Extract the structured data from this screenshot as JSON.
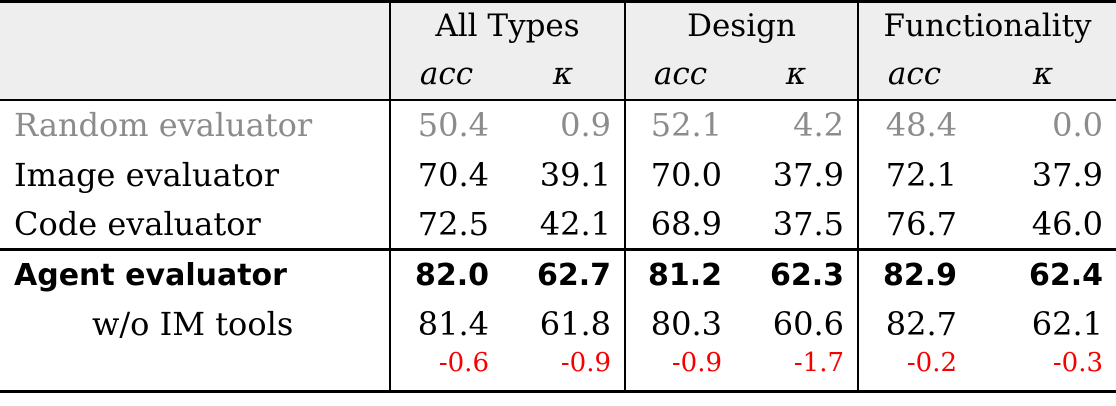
{
  "table": {
    "corner_label": "",
    "groups": [
      {
        "label": "All Types"
      },
      {
        "label": "Design"
      },
      {
        "label": "Functionality"
      }
    ],
    "subheaders": {
      "acc": "acc",
      "kappa": "κ"
    },
    "rows": [
      {
        "label": "Random evaluator",
        "style": "muted",
        "values": [
          "50.4",
          "0.9",
          "52.1",
          "4.2",
          "48.4",
          "0.0"
        ]
      },
      {
        "label": "Image evaluator",
        "style": "normal",
        "values": [
          "70.4",
          "39.1",
          "70.0",
          "37.9",
          "72.1",
          "37.9"
        ]
      },
      {
        "label": "Code evaluator",
        "style": "normal",
        "values": [
          "72.5",
          "42.1",
          "68.9",
          "37.5",
          "76.7",
          "46.0"
        ]
      },
      {
        "label": "Agent evaluator",
        "style": "bold",
        "values": [
          "82.0",
          "62.7",
          "81.2",
          "62.3",
          "82.9",
          "62.4"
        ]
      },
      {
        "label": "w/o IM tools",
        "style": "indented",
        "values": [
          "81.4",
          "61.8",
          "80.3",
          "60.6",
          "82.7",
          "62.1"
        ]
      },
      {
        "label": "",
        "style": "delta-red",
        "values": [
          "-0.6",
          "-0.9",
          "-0.9",
          "-1.7",
          "-0.2",
          "-0.3"
        ]
      }
    ],
    "colors": {
      "muted_text": "#8c8c8c",
      "negative_delta": "#f70000",
      "header_background": "#eeeeee",
      "rule": "#000000"
    }
  }
}
